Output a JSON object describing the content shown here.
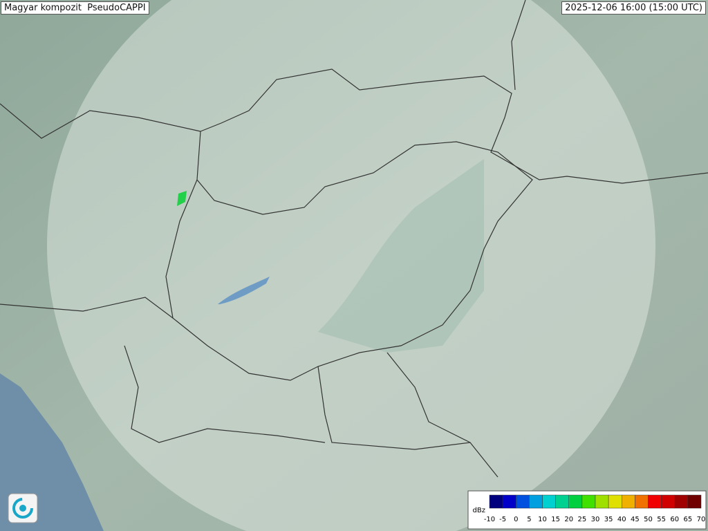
{
  "header": {
    "title": "Magyar kompozit  PseudoCAPPI",
    "timestamp": "2025-12-06 16:00 (15:00 UTC)"
  },
  "legend": {
    "unit": "dBz",
    "ticks": [
      -10,
      -5,
      0,
      5,
      10,
      15,
      20,
      25,
      30,
      35,
      40,
      45,
      50,
      55,
      60,
      65,
      70
    ],
    "colors": [
      "#00007f",
      "#0000c8",
      "#0050e0",
      "#00a0e0",
      "#00d0d0",
      "#00d090",
      "#00d040",
      "#40e000",
      "#a0e000",
      "#e0e000",
      "#f0b000",
      "#f07000",
      "#f00000",
      "#d00000",
      "#a00000",
      "#700000"
    ]
  }
}
